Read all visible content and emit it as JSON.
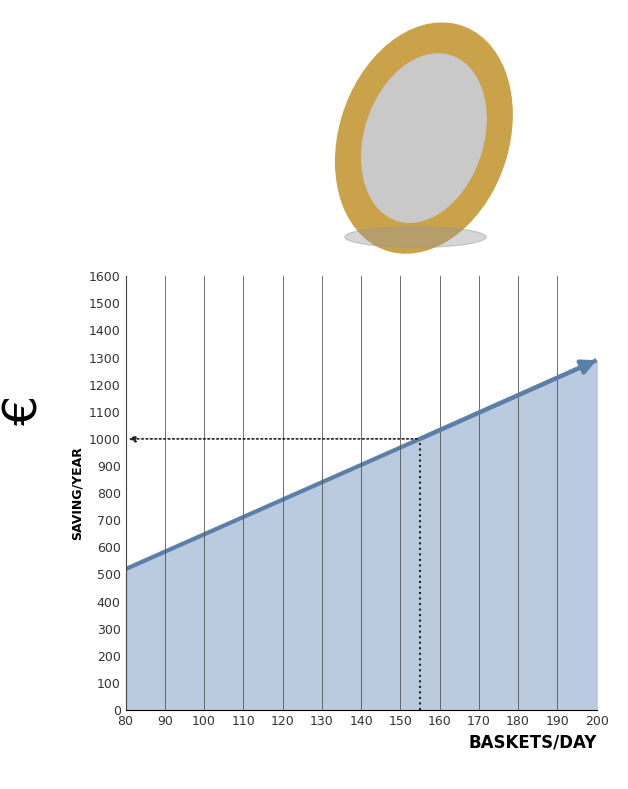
{
  "chart_data": {
    "type": "area",
    "y_unit": "€",
    "y_label": "SAVING/YEAR",
    "x_label": "BASKETS/DAY",
    "x": [
      80,
      155,
      200
    ],
    "values": [
      520,
      1000,
      1290
    ],
    "reference_point": {
      "x": 155,
      "y": 1000
    },
    "color": "#5b7fa6",
    "xlim": [
      80,
      200
    ],
    "xticks": [
      80,
      90,
      100,
      110,
      120,
      130,
      140,
      150,
      160,
      170,
      180,
      190,
      200
    ],
    "ylim": [
      0,
      1600
    ],
    "yticks": [
      0,
      100,
      200,
      300,
      400,
      500,
      600,
      700,
      800,
      900,
      1000,
      1100,
      1200,
      1300,
      1400,
      1500,
      1600
    ],
    "grid": true
  }
}
